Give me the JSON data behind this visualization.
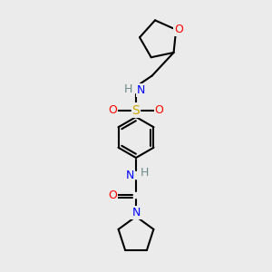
{
  "bg_color": "#ebebeb",
  "atom_colors": {
    "C": "#000000",
    "H": "#6a8a8a",
    "N": "#0000ff",
    "O": "#ff0000",
    "S": "#ccaa00"
  },
  "bond_color": "#000000",
  "figsize": [
    3.0,
    3.0
  ],
  "dpi": 100
}
